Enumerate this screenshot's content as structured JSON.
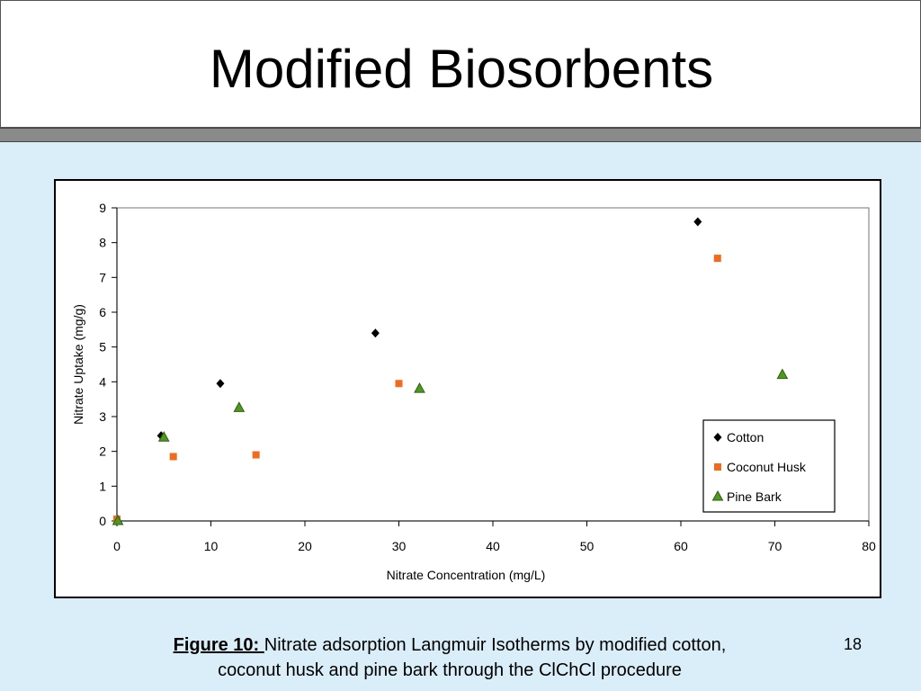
{
  "slide": {
    "title": "Modified Biosorbents",
    "page_number": "18"
  },
  "caption": {
    "lead": "Figure 10: ",
    "line1": "Nitrate adsorption Langmuir Isotherms by modified cotton,",
    "line2": "coconut husk and pine bark through the ClChCl procedure"
  },
  "chart_data": {
    "type": "scatter",
    "xlabel": "Nitrate Concentration (mg/L)",
    "ylabel": "Nitrate Uptake (mg/g)",
    "xlim": [
      0,
      80
    ],
    "ylim": [
      0,
      9
    ],
    "xticks": [
      0,
      10,
      20,
      30,
      40,
      50,
      60,
      70,
      80
    ],
    "yticks": [
      0,
      1,
      2,
      3,
      4,
      5,
      6,
      7,
      8,
      9
    ],
    "grid": false,
    "legend_position": "bottom-right",
    "series": [
      {
        "name": "Cotton",
        "marker": "diamond",
        "color": "#000000",
        "points": [
          [
            0,
            0
          ],
          [
            4.7,
            2.45
          ],
          [
            11,
            3.95
          ],
          [
            27.5,
            5.4
          ],
          [
            61.8,
            8.6
          ]
        ]
      },
      {
        "name": "Coconut Husk",
        "marker": "square",
        "color": "#f26b1d",
        "points": [
          [
            0,
            0.05
          ],
          [
            6,
            1.85
          ],
          [
            14.8,
            1.9
          ],
          [
            30,
            3.95
          ],
          [
            63.9,
            7.55
          ]
        ]
      },
      {
        "name": "Pine Bark",
        "marker": "triangle",
        "color": "#4f9a1e",
        "points": [
          [
            0.1,
            0
          ],
          [
            5,
            2.4
          ],
          [
            13,
            3.25
          ],
          [
            32.2,
            3.8
          ],
          [
            70.8,
            4.2
          ]
        ]
      }
    ]
  }
}
